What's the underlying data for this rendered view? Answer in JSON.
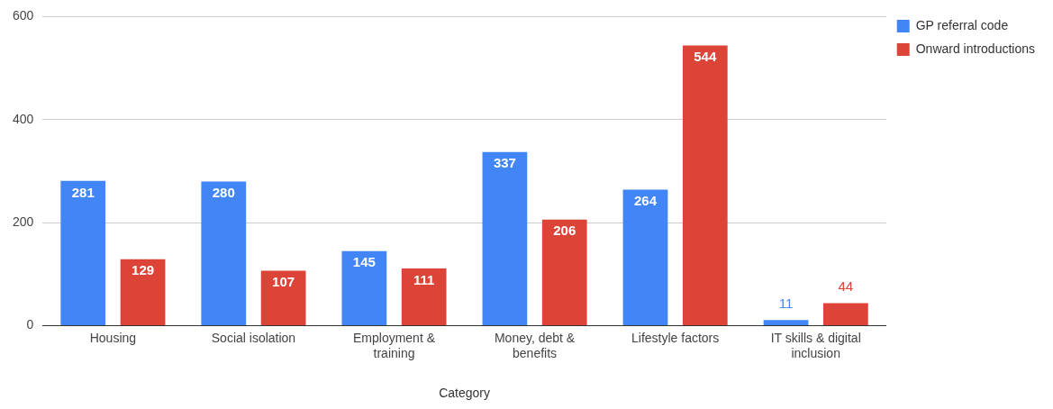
{
  "chart_data": {
    "type": "bar",
    "xlabel": "Category",
    "categories": [
      "Housing",
      "Social isolation",
      "Employment & training",
      "Money, debt & benefits",
      "Lifestyle factors",
      "IT skills & digital inclusion"
    ],
    "series": [
      {
        "name": "GP referral code",
        "color": "#4285f4",
        "values": [
          281,
          280,
          145,
          337,
          264,
          11
        ]
      },
      {
        "name": "Onward introductions",
        "color": "#db4437",
        "values": [
          129,
          107,
          111,
          206,
          544,
          44
        ]
      }
    ],
    "ylim": [
      0,
      600
    ],
    "yticks": [
      0,
      200,
      400,
      600
    ],
    "grid": "y",
    "legend": "top right",
    "data_labels": true
  }
}
